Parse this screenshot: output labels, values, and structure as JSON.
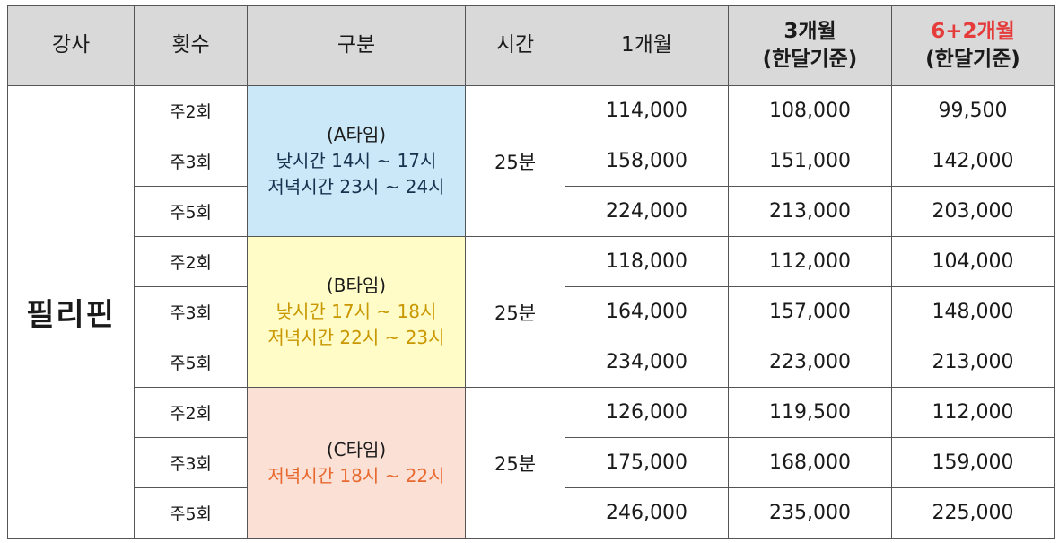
{
  "headers": {
    "teacher": "강사",
    "frequency": "횟수",
    "category": "구분",
    "time": "시간",
    "one_month": "1개월",
    "three_month_line1": "3개월",
    "three_month_line2": "(한달기준)",
    "six_month_line1": "6+2개월",
    "six_month_line2": "(한달기준)"
  },
  "teacher": "필리핀",
  "groups": [
    {
      "name": "(A타임)",
      "times": [
        "낮시간 14시 ~ 17시",
        "저녁시간 23시 ~ 24시"
      ],
      "duration": "25분",
      "rows": [
        {
          "freq": "주2회",
          "m1": "114,000",
          "m3": "108,000",
          "m8": "99,500"
        },
        {
          "freq": "주3회",
          "m1": "158,000",
          "m3": "151,000",
          "m8": "142,000"
        },
        {
          "freq": "주5회",
          "m1": "224,000",
          "m3": "213,000",
          "m8": "203,000"
        }
      ]
    },
    {
      "name": "(B타임)",
      "times": [
        "낮시간 17시 ~ 18시",
        "저녁시간 22시 ~ 23시"
      ],
      "duration": "25분",
      "rows": [
        {
          "freq": "주2회",
          "m1": "118,000",
          "m3": "112,000",
          "m8": "104,000"
        },
        {
          "freq": "주3회",
          "m1": "164,000",
          "m3": "157,000",
          "m8": "148,000"
        },
        {
          "freq": "주5회",
          "m1": "234,000",
          "m3": "223,000",
          "m8": "213,000"
        }
      ]
    },
    {
      "name": "(C타임)",
      "times": [
        "저녁시간 18시 ~ 22시"
      ],
      "duration": "25분",
      "rows": [
        {
          "freq": "주2회",
          "m1": "126,000",
          "m3": "119,500",
          "m8": "112,000"
        },
        {
          "freq": "주3회",
          "m1": "175,000",
          "m3": "168,000",
          "m8": "159,000"
        },
        {
          "freq": "주5회",
          "m1": "246,000",
          "m3": "235,000",
          "m8": "225,000"
        }
      ]
    }
  ],
  "colors": {
    "header_bg": "#d9d9d9",
    "slot_a_bg": "#cbe8f8",
    "slot_b_bg": "#fffcc7",
    "slot_c_bg": "#fbe0d5",
    "slot_a_text": "#16324f",
    "slot_b_text": "#c99700",
    "slot_c_text": "#e8692f",
    "highlight_header": "#e53b3b"
  }
}
